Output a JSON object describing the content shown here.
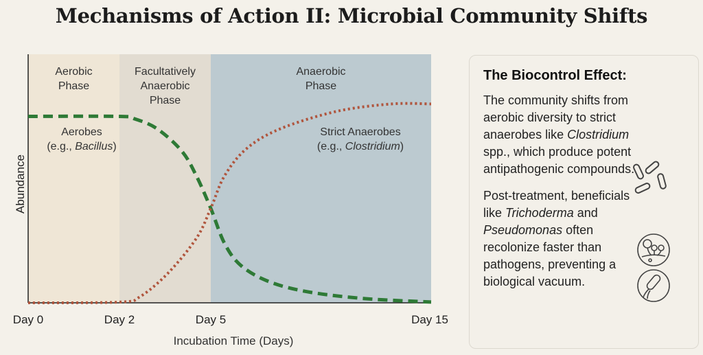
{
  "title": "Mechanisms of Action II: Microbial Community Shifts",
  "chart_data": {
    "type": "line",
    "title": "",
    "xlabel": "Incubation Time (Days)",
    "ylabel": "Abundance",
    "x_ticks": [
      {
        "value": 0,
        "label": "Day 0"
      },
      {
        "value": 2,
        "label": "Day 2"
      },
      {
        "value": 5,
        "label": "Day 5"
      },
      {
        "value": 15,
        "label": "Day 15"
      }
    ],
    "xlim": [
      0,
      15
    ],
    "ylim": [
      0,
      1
    ],
    "phases": [
      {
        "name": "Aerobic Phase",
        "lines": [
          "Aerobic",
          "Phase"
        ],
        "start": 0,
        "end": 2,
        "color": "#efe6d6"
      },
      {
        "name": "Facultatively Anaerobic Phase",
        "lines": [
          "Facultatively",
          "Anaerobic",
          "Phase"
        ],
        "start": 2,
        "end": 5,
        "color": "#e2dcd1"
      },
      {
        "name": "Anaerobic Phase",
        "lines": [
          "Anaerobic",
          "Phase"
        ],
        "start": 5,
        "end": 15,
        "color": "#bccad0"
      }
    ],
    "series": [
      {
        "name": "Aerobes",
        "label_line1": "Aerobes",
        "label_prefix": "(e.g., ",
        "label_italic": "Bacillus",
        "label_suffix": ")",
        "style": "dashed",
        "color": "#2e7a36",
        "x": [
          0,
          2,
          2.5,
          3.24,
          4.05,
          4.53,
          5.0,
          5.62,
          6.37,
          7.65,
          9.42,
          11.98,
          15
        ],
        "y": [
          0.75,
          0.75,
          0.74,
          0.7,
          0.61,
          0.51,
          0.38,
          0.24,
          0.15,
          0.085,
          0.044,
          0.017,
          0.003
        ]
      },
      {
        "name": "Strict Anaerobes",
        "label_line1": "Strict Anaerobes",
        "label_prefix": "(e.g., ",
        "label_italic": "Clostridium",
        "label_suffix": ")",
        "style": "dotted",
        "color": "#b0553d",
        "x": [
          0,
          2,
          2.68,
          3.6,
          4.53,
          5.0,
          5.62,
          6.62,
          8.15,
          10.7,
          13.2,
          15
        ],
        "y": [
          0.0,
          0.003,
          0.025,
          0.12,
          0.26,
          0.38,
          0.51,
          0.62,
          0.7,
          0.77,
          0.8,
          0.8
        ]
      }
    ],
    "grid": false
  },
  "panel": {
    "heading": "The Biocontrol Effect:",
    "p1": {
      "a": "The community shifts from aerobic diversity to strict anaerobes like ",
      "i1": "Clostridium",
      "b": " spp., which produce potent antipathogenic compounds."
    },
    "p2": {
      "a": "Post-treatment, beneficials like ",
      "i1": "Trichoderma",
      "b": " and ",
      "i2": "Pseudomonas",
      "c": " often recolonize faster than pathogens, preventing a biological vacuum."
    },
    "icons": [
      "bacteria-rods-icon",
      "fungi-icon",
      "bacterium-flagella-icon"
    ]
  }
}
